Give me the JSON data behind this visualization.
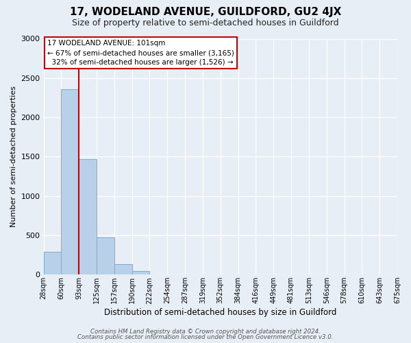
{
  "title": "17, WODELAND AVENUE, GUILDFORD, GU2 4JX",
  "subtitle": "Size of property relative to semi-detached houses in Guildford",
  "xlabel": "Distribution of semi-detached houses by size in Guildford",
  "ylabel": "Number of semi-detached properties",
  "bar_values": [
    290,
    2360,
    1470,
    470,
    130,
    50,
    0,
    0,
    0,
    0,
    0,
    0,
    0,
    0,
    0,
    0,
    0,
    0,
    0,
    0
  ],
  "bin_labels": [
    "28sqm",
    "60sqm",
    "93sqm",
    "125sqm",
    "157sqm",
    "190sqm",
    "222sqm",
    "254sqm",
    "287sqm",
    "319sqm",
    "352sqm",
    "384sqm",
    "416sqm",
    "449sqm",
    "481sqm",
    "513sqm",
    "546sqm",
    "578sqm",
    "610sqm",
    "643sqm",
    "675sqm"
  ],
  "ylim": [
    0,
    3000
  ],
  "yticks": [
    0,
    500,
    1000,
    1500,
    2000,
    2500,
    3000
  ],
  "bar_color": "#b8d0e8",
  "bar_edge_color": "#7aadd4",
  "vline_color": "#cc0000",
  "annotation_title": "17 WODELAND AVENUE: 101sqm",
  "annotation_line1": "← 67% of semi-detached houses are smaller (3,165)",
  "annotation_line2": "  32% of semi-detached houses are larger (1,526) →",
  "annotation_box_color": "#ffffff",
  "annotation_box_edge": "#cc0000",
  "footer_line1": "Contains HM Land Registry data © Crown copyright and database right 2024.",
  "footer_line2": "Contains public sector information licensed under the Open Government Licence v3.0.",
  "background_color": "#e8eef5",
  "plot_bg_color": "#e8eef5",
  "num_bins": 20
}
